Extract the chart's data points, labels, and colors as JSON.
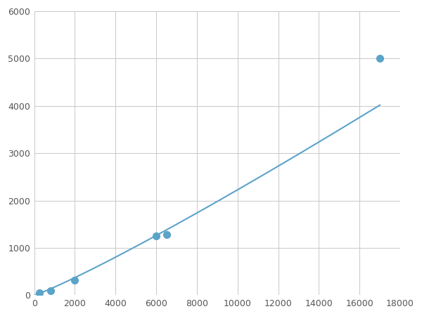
{
  "x_data": [
    250,
    800,
    2000,
    6000,
    6500,
    17000
  ],
  "y_data": [
    50,
    100,
    320,
    1250,
    1280,
    5000
  ],
  "line_color": "#5ba3c9",
  "marker_color": "#5ba3c9",
  "marker_size": 7,
  "linewidth": 1.5,
  "xlim": [
    0,
    18000
  ],
  "ylim": [
    0,
    6000
  ],
  "xticks": [
    0,
    2000,
    4000,
    6000,
    8000,
    10000,
    12000,
    14000,
    16000,
    18000
  ],
  "yticks": [
    0,
    1000,
    2000,
    3000,
    4000,
    5000,
    6000
  ],
  "grid_color": "#c8c8c8",
  "fig_background": "#ffffff"
}
